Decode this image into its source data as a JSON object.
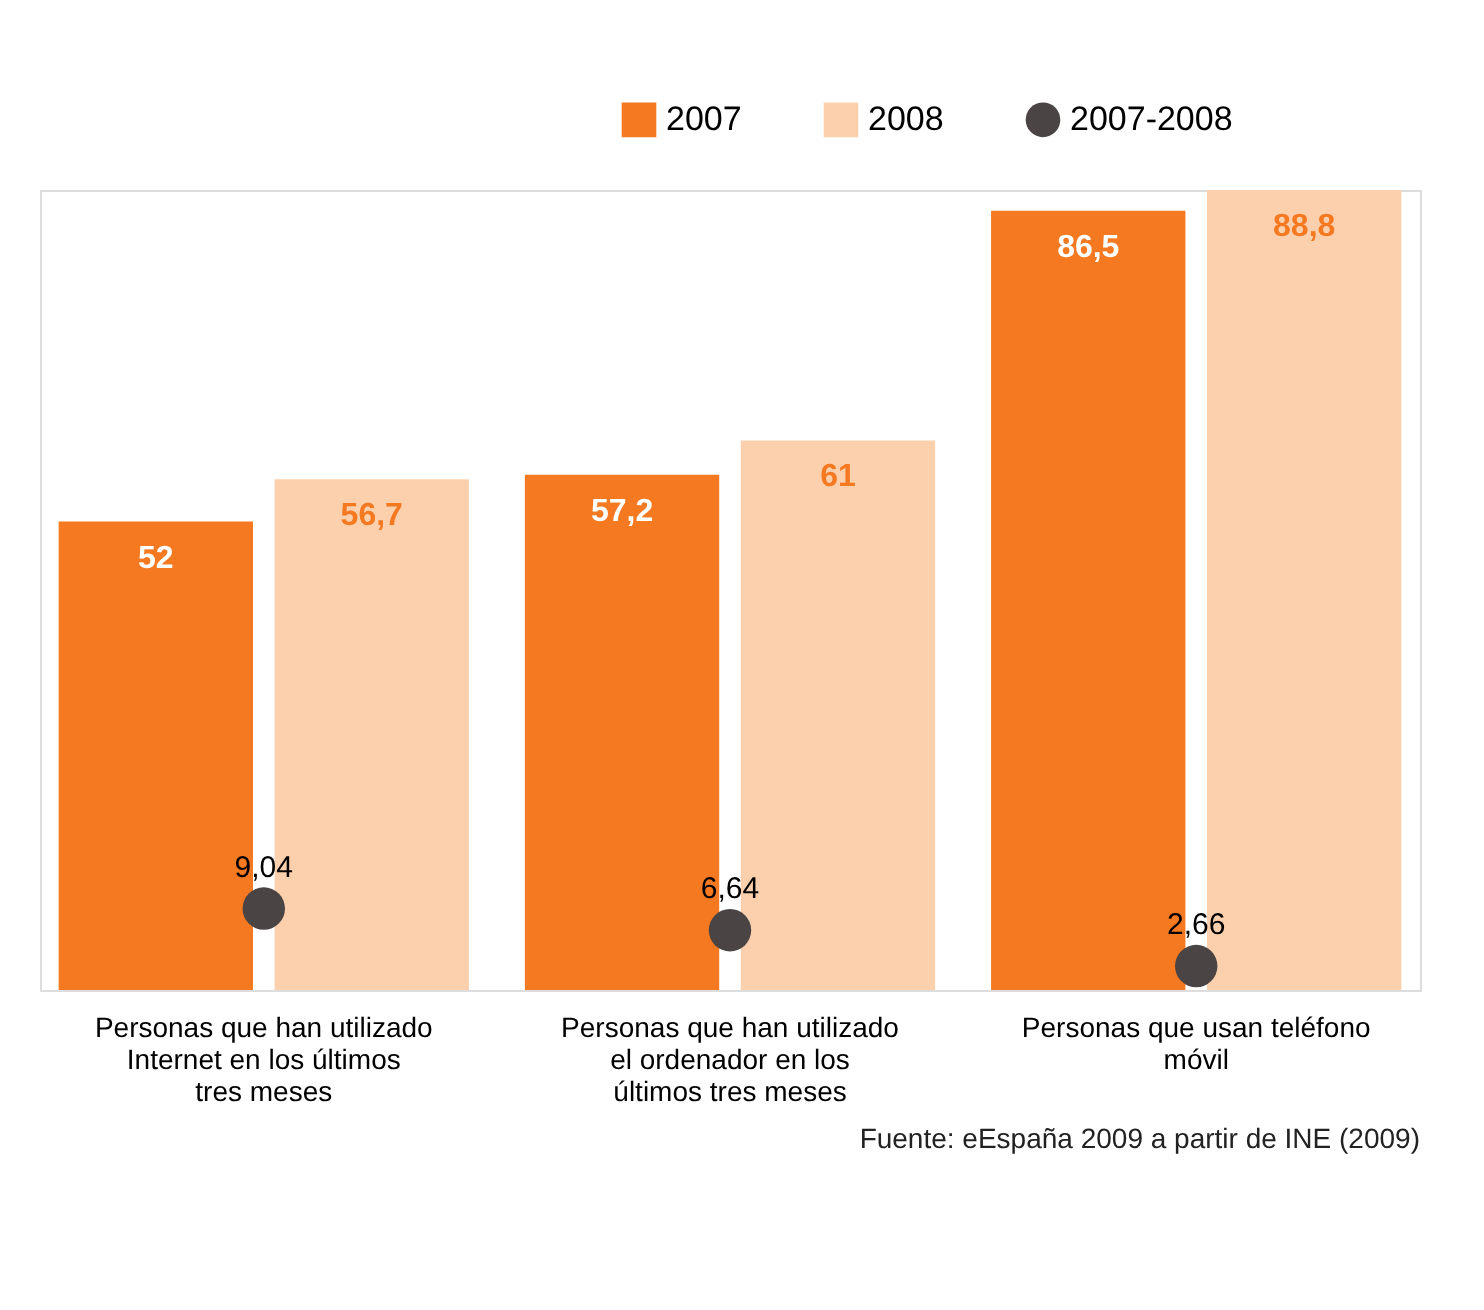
{
  "chart_data": {
    "type": "bar",
    "categories": [
      "Personas que han utilizado Internet en los últimos tres meses",
      "Personas que han utilizado el ordenador en los últimos tres meses",
      "Personas que usan teléfono móvil"
    ],
    "series": [
      {
        "name": "2007",
        "color": "#f47920",
        "values": [
          52,
          57.2,
          86.5
        ],
        "value_labels": [
          "52",
          "57,2",
          "86,5"
        ]
      },
      {
        "name": "2008",
        "color": "#fdd0ad",
        "values": [
          56.7,
          61,
          88.8
        ],
        "value_labels": [
          "56,7",
          "61",
          "88,8"
        ]
      },
      {
        "name": "2007-2008",
        "type": "scatter",
        "color": "#4a4444",
        "x": [
          "Personas que han utilizado Internet en los últimos tres meses",
          "Personas que han utilizado el ordenador en los últimos tres meses",
          "Personas que usan teléfono móvil"
        ],
        "values": [
          9.04,
          6.64,
          2.66
        ],
        "value_labels": [
          "9,04",
          "6,64",
          "2,66"
        ]
      }
    ],
    "data_labels": true,
    "legend": "top right",
    "grid": false,
    "annotations": [
      "Fuente: eEspaña 2009 a partir de INE (2009)"
    ]
  }
}
